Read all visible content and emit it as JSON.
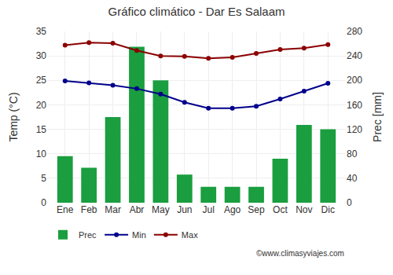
{
  "chart_data": {
    "type": "bar",
    "title": "Gráfico climático - Dar Es Salaam",
    "categories": [
      "Ene",
      "Feb",
      "Mar",
      "Abr",
      "May",
      "Jun",
      "Jul",
      "Ago",
      "Sep",
      "Oct",
      "Nov",
      "Dic"
    ],
    "series": [
      {
        "name": "Prec",
        "type": "bar",
        "axis": "y2",
        "color": "#1a9e3f",
        "values": [
          76,
          57,
          140,
          255,
          200,
          46,
          26,
          26,
          26,
          72,
          127,
          120
        ]
      },
      {
        "name": "Min",
        "type": "line",
        "marker": "circle",
        "color": "#00008b",
        "values": [
          24.9,
          24.5,
          24.0,
          23.3,
          22.2,
          20.5,
          19.3,
          19.3,
          19.7,
          21.2,
          22.8,
          24.4
        ]
      },
      {
        "name": "Max",
        "type": "line",
        "marker": "circle",
        "color": "#8b0000",
        "values": [
          32.2,
          32.7,
          32.6,
          31.1,
          30.0,
          29.9,
          29.5,
          29.7,
          30.5,
          31.3,
          31.6,
          32.3
        ]
      }
    ],
    "ylabel": "Temp (°C)",
    "y2label": "Prec [mm]",
    "ylim": [
      0,
      35
    ],
    "yticks": [
      0,
      5,
      10,
      15,
      20,
      25,
      30,
      35
    ],
    "y2lim": [
      0,
      280
    ],
    "y2ticks": [
      0,
      40,
      80,
      120,
      160,
      200,
      240,
      280
    ],
    "grid": true,
    "legend": "bottom",
    "annotations": [
      "©www.climasyviajes.com"
    ]
  }
}
